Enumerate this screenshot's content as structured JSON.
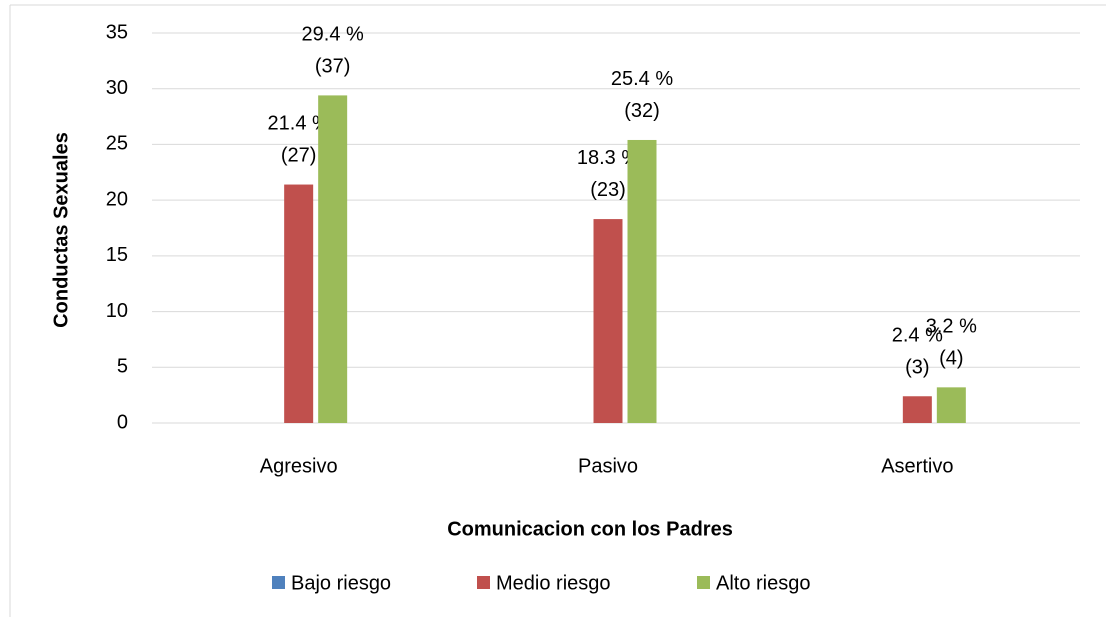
{
  "chart_data": {
    "type": "bar",
    "x_label": "Comunicacion con los Padres",
    "y_label": "Conductas Sexuales",
    "categories": [
      "Agresivo",
      "Pasivo",
      "Asertivo"
    ],
    "series": [
      {
        "name": "Bajo riesgo",
        "color": "#4f81bd",
        "values": [
          0,
          0,
          0
        ]
      },
      {
        "name": "Medio riesgo",
        "color": "#c0504d",
        "values": [
          21.4,
          18.3,
          2.4
        ],
        "value_labels": [
          "21.4 % (27)",
          "18.3 % (23)",
          "2.4 % (3)"
        ]
      },
      {
        "name": "Alto riesgo",
        "color": "#9bbb59",
        "values": [
          29.4,
          25.4,
          3.2
        ],
        "value_labels": [
          "29.4 % (37)",
          "25.4 % (32)",
          "3.2 % (4)"
        ]
      }
    ],
    "ylim": [
      0,
      35
    ],
    "yticks": [
      0,
      5,
      10,
      15,
      20,
      25,
      30,
      35
    ],
    "grid": true,
    "legend": "bottom"
  }
}
